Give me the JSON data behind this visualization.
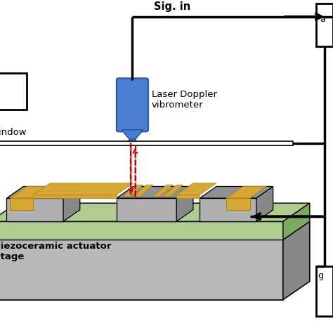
{
  "bg_color": "#ffffff",
  "fig_width": 4.74,
  "fig_height": 4.74,
  "dpi": 100,
  "laser_doppler_label": "Laser Doppler\nvibrometer",
  "window_label": "Window",
  "stage_label": "Piezoceramic actuator\nStage",
  "sig_in_label": "Sig. in",
  "laser_blue": "#4a7fd4",
  "laser_blue_dark": "#2a55a0",
  "green_board_top": "#b0cc90",
  "green_board_side": "#7aaa60",
  "gray_stage_face": "#b8b8b8",
  "gray_stage_top": "#999999",
  "gray_stage_side": "#888888",
  "gray_chip_face": "#b0b0b0",
  "gray_chip_top": "#909090",
  "gold_color": "#d4a832",
  "gold_dark": "#b08020",
  "red_color": "#cc0000",
  "black": "#000000",
  "white": "#ffffff"
}
